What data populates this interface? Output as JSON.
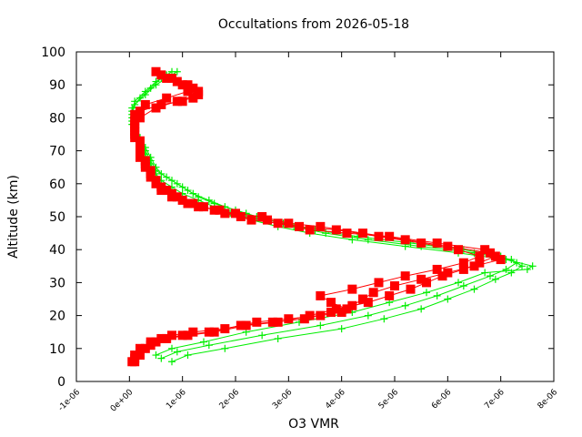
{
  "chart_data": {
    "type": "line",
    "title": "Occultations from 2026-05-18",
    "xlabel": "O3 VMR",
    "ylabel": "Altitude (km)",
    "xlim": [
      -1e-06,
      8e-06
    ],
    "ylim": [
      0,
      100
    ],
    "x_ticks": [
      "-1e-06",
      "0e+00",
      "1e-06",
      "2e-06",
      "3e-06",
      "4e-06",
      "5e-06",
      "6e-06",
      "7e-06",
      "8e-06"
    ],
    "x_tick_values": [
      -1e-06,
      0,
      1e-06,
      2e-06,
      3e-06,
      4e-06,
      5e-06,
      6e-06,
      7e-06,
      8e-06
    ],
    "y_ticks": [
      "0",
      "10",
      "20",
      "30",
      "40",
      "50",
      "60",
      "70",
      "80",
      "90",
      "100"
    ],
    "y_tick_values": [
      0,
      10,
      20,
      30,
      40,
      50,
      60,
      70,
      80,
      90,
      100
    ],
    "grid": false,
    "legend": "none",
    "series": [
      {
        "color": "#00ee00",
        "marker": "plus",
        "connected": true,
        "points": [
          [
            8e-07,
            6
          ],
          [
            1.1e-06,
            8
          ],
          [
            1.8e-06,
            10
          ],
          [
            2.8e-06,
            13
          ],
          [
            4e-06,
            16
          ],
          [
            4.8e-06,
            19
          ],
          [
            5.5e-06,
            22
          ],
          [
            6e-06,
            25
          ],
          [
            6.5e-06,
            28
          ],
          [
            6.9e-06,
            31
          ],
          [
            7.2e-06,
            33
          ],
          [
            7.4e-06,
            35
          ],
          [
            7.2e-06,
            37
          ],
          [
            6.5e-06,
            39
          ],
          [
            5.5e-06,
            41
          ],
          [
            4.5e-06,
            43
          ],
          [
            3.7e-06,
            45
          ],
          [
            3.1e-06,
            47
          ],
          [
            2.6e-06,
            49
          ],
          [
            2.2e-06,
            51
          ],
          [
            1.8e-06,
            53
          ],
          [
            1.5e-06,
            55
          ],
          [
            1.2e-06,
            57
          ],
          [
            1e-06,
            59
          ],
          [
            8e-07,
            61
          ],
          [
            6e-07,
            63
          ],
          [
            5e-07,
            65
          ],
          [
            4e-07,
            68
          ],
          [
            3e-07,
            71
          ],
          [
            2e-07,
            74
          ],
          [
            1e-07,
            77
          ],
          [
            5e-08,
            80
          ],
          [
            5e-08,
            83
          ],
          [
            2e-07,
            86
          ],
          [
            4e-07,
            89
          ],
          [
            6e-07,
            92
          ],
          [
            8e-07,
            94
          ]
        ]
      },
      {
        "color": "#00ee00",
        "marker": "plus",
        "connected": true,
        "points": [
          [
            6e-07,
            7
          ],
          [
            9e-07,
            9
          ],
          [
            1.5e-06,
            11
          ],
          [
            2.5e-06,
            14
          ],
          [
            3.6e-06,
            17
          ],
          [
            4.5e-06,
            20
          ],
          [
            5.2e-06,
            23
          ],
          [
            5.8e-06,
            26
          ],
          [
            6.3e-06,
            29
          ],
          [
            6.8e-06,
            32
          ],
          [
            7.1e-06,
            34
          ],
          [
            7.3e-06,
            36
          ],
          [
            7e-06,
            38
          ],
          [
            6.3e-06,
            40
          ],
          [
            5.3e-06,
            42
          ],
          [
            4.3e-06,
            44
          ],
          [
            3.5e-06,
            46
          ],
          [
            2.9e-06,
            48
          ],
          [
            2.4e-06,
            50
          ],
          [
            2e-06,
            52
          ],
          [
            1.6e-06,
            54
          ],
          [
            1.3e-06,
            56
          ],
          [
            1.1e-06,
            58
          ],
          [
            9e-07,
            60
          ],
          [
            7e-07,
            62
          ],
          [
            5e-07,
            64
          ],
          [
            4e-07,
            67
          ],
          [
            3e-07,
            70
          ],
          [
            2e-07,
            73
          ],
          [
            1e-07,
            76
          ],
          [
            5e-08,
            79
          ],
          [
            5e-08,
            82
          ],
          [
            1e-07,
            85
          ],
          [
            3e-07,
            88
          ],
          [
            5e-07,
            91
          ],
          [
            7e-07,
            93
          ]
        ]
      },
      {
        "color": "#00ee00",
        "marker": "plus",
        "connected": true,
        "points": [
          [
            5e-07,
            8
          ],
          [
            8e-07,
            10
          ],
          [
            1.4e-06,
            12
          ],
          [
            2.2e-06,
            15
          ],
          [
            3.2e-06,
            18
          ],
          [
            4.2e-06,
            21
          ],
          [
            4.9e-06,
            24
          ],
          [
            5.6e-06,
            27
          ],
          [
            6.2e-06,
            30
          ],
          [
            6.7e-06,
            33
          ],
          [
            7.5e-06,
            34
          ],
          [
            7.6e-06,
            35
          ],
          [
            7.1e-06,
            37
          ],
          [
            6.2e-06,
            39
          ],
          [
            5.2e-06,
            41
          ],
          [
            4.2e-06,
            43
          ],
          [
            3.4e-06,
            45
          ],
          [
            2.8e-06,
            47
          ],
          [
            2.3e-06,
            49
          ],
          [
            1.9e-06,
            51
          ],
          [
            1.6e-06,
            53
          ],
          [
            1.3e-06,
            55
          ],
          [
            1e-06,
            57
          ],
          [
            8e-07,
            59
          ],
          [
            6e-07,
            61
          ],
          [
            5e-07,
            63
          ],
          [
            4e-07,
            66
          ],
          [
            3e-07,
            69
          ],
          [
            2e-07,
            72
          ],
          [
            1e-07,
            75
          ],
          [
            5e-08,
            78
          ],
          [
            5e-08,
            81
          ],
          [
            1e-07,
            84
          ],
          [
            3e-07,
            87
          ],
          [
            5e-07,
            90
          ],
          [
            9e-07,
            94
          ]
        ]
      },
      {
        "color": "#ff0000",
        "marker": "square",
        "connected": true,
        "points": [
          [
            1e-07,
            6
          ],
          [
            2e-07,
            8
          ],
          [
            3e-07,
            10
          ],
          [
            5e-07,
            12
          ],
          [
            8e-07,
            14
          ],
          [
            1.2e-06,
            15
          ],
          [
            1.8e-06,
            16
          ],
          [
            2.4e-06,
            18
          ],
          [
            3e-06,
            19
          ],
          [
            3.6e-06,
            20
          ],
          [
            4e-06,
            21
          ],
          [
            4.2e-06,
            23
          ],
          [
            4.4e-06,
            25
          ],
          [
            4.6e-06,
            27
          ],
          [
            5e-06,
            29
          ],
          [
            5.5e-06,
            31
          ],
          [
            6e-06,
            33
          ],
          [
            6.5e-06,
            35
          ],
          [
            7e-06,
            37
          ],
          [
            6.8e-06,
            39
          ],
          [
            6e-06,
            41
          ],
          [
            5.2e-06,
            43
          ],
          [
            4.4e-06,
            45
          ],
          [
            3.6e-06,
            47
          ],
          [
            3e-06,
            48
          ],
          [
            2.5e-06,
            50
          ],
          [
            2e-06,
            51
          ],
          [
            1.6e-06,
            52
          ],
          [
            1.2e-06,
            54
          ],
          [
            9e-07,
            56
          ],
          [
            7e-07,
            58
          ],
          [
            5e-07,
            60
          ],
          [
            4e-07,
            63
          ],
          [
            3e-07,
            66
          ],
          [
            2e-07,
            69
          ],
          [
            2e-07,
            72
          ],
          [
            1e-07,
            75
          ],
          [
            1e-07,
            78
          ],
          [
            1e-07,
            81
          ],
          [
            3e-07,
            84
          ],
          [
            7e-07,
            86
          ],
          [
            1.1e-06,
            88
          ],
          [
            1.3e-06,
            87
          ],
          [
            1e-06,
            90
          ],
          [
            7e-07,
            92
          ],
          [
            5e-07,
            94
          ]
        ]
      },
      {
        "color": "#ff0000",
        "marker": "square",
        "connected": true,
        "points": [
          [
            1e-07,
            7
          ],
          [
            2e-07,
            9
          ],
          [
            4e-07,
            11
          ],
          [
            6e-07,
            13
          ],
          [
            1e-06,
            14
          ],
          [
            1.5e-06,
            15
          ],
          [
            2.1e-06,
            17
          ],
          [
            2.7e-06,
            18
          ],
          [
            3.3e-06,
            19
          ],
          [
            3.8e-06,
            21
          ],
          [
            4.1e-06,
            22
          ],
          [
            3.8e-06,
            24
          ],
          [
            3.6e-06,
            26
          ],
          [
            4.2e-06,
            28
          ],
          [
            4.7e-06,
            30
          ],
          [
            5.2e-06,
            32
          ],
          [
            5.8e-06,
            34
          ],
          [
            6.3e-06,
            36
          ],
          [
            6.6e-06,
            38
          ],
          [
            6.2e-06,
            40
          ],
          [
            5.5e-06,
            42
          ],
          [
            4.7e-06,
            44
          ],
          [
            3.9e-06,
            46
          ],
          [
            3.2e-06,
            47
          ],
          [
            2.6e-06,
            49
          ],
          [
            2.1e-06,
            50
          ],
          [
            1.7e-06,
            52
          ],
          [
            1.3e-06,
            53
          ],
          [
            1e-06,
            55
          ],
          [
            8e-07,
            57
          ],
          [
            6e-07,
            59
          ],
          [
            4e-07,
            62
          ],
          [
            3e-07,
            65
          ],
          [
            2e-07,
            68
          ],
          [
            2e-07,
            71
          ],
          [
            1e-07,
            74
          ],
          [
            1e-07,
            77
          ],
          [
            2e-07,
            80
          ],
          [
            5e-07,
            83
          ],
          [
            9e-07,
            85
          ],
          [
            1.2e-06,
            86
          ],
          [
            1.2e-06,
            89
          ],
          [
            9e-07,
            91
          ],
          [
            6e-07,
            93
          ]
        ]
      },
      {
        "color": "#ff0000",
        "marker": "square",
        "connected": true,
        "points": [
          [
            5e-08,
            6
          ],
          [
            1e-07,
            8
          ],
          [
            2e-07,
            10
          ],
          [
            4e-07,
            12
          ],
          [
            7e-07,
            13
          ],
          [
            1.1e-06,
            14
          ],
          [
            1.6e-06,
            15
          ],
          [
            2.2e-06,
            17
          ],
          [
            2.8e-06,
            18
          ],
          [
            3.4e-06,
            20
          ],
          [
            3.9e-06,
            22
          ],
          [
            4.5e-06,
            24
          ],
          [
            4.9e-06,
            26
          ],
          [
            5.3e-06,
            28
          ],
          [
            5.6e-06,
            30
          ],
          [
            5.9e-06,
            32
          ],
          [
            6.3e-06,
            34
          ],
          [
            6.6e-06,
            36
          ],
          [
            6.9e-06,
            38
          ],
          [
            6.7e-06,
            40
          ],
          [
            5.8e-06,
            42
          ],
          [
            4.9e-06,
            44
          ],
          [
            4.1e-06,
            45
          ],
          [
            3.4e-06,
            46
          ],
          [
            2.8e-06,
            48
          ],
          [
            2.3e-06,
            49
          ],
          [
            1.8e-06,
            51
          ],
          [
            1.4e-06,
            53
          ],
          [
            1.1e-06,
            54
          ],
          [
            8e-07,
            56
          ],
          [
            6e-07,
            58
          ],
          [
            5e-07,
            61
          ],
          [
            4e-07,
            64
          ],
          [
            3e-07,
            67
          ],
          [
            2e-07,
            70
          ],
          [
            2e-07,
            73
          ],
          [
            1e-07,
            76
          ],
          [
            1e-07,
            79
          ],
          [
            2e-07,
            82
          ],
          [
            6e-07,
            84
          ],
          [
            1e-06,
            85
          ],
          [
            1.3e-06,
            88
          ],
          [
            1.1e-06,
            90
          ],
          [
            8e-07,
            92
          ]
        ]
      }
    ]
  }
}
